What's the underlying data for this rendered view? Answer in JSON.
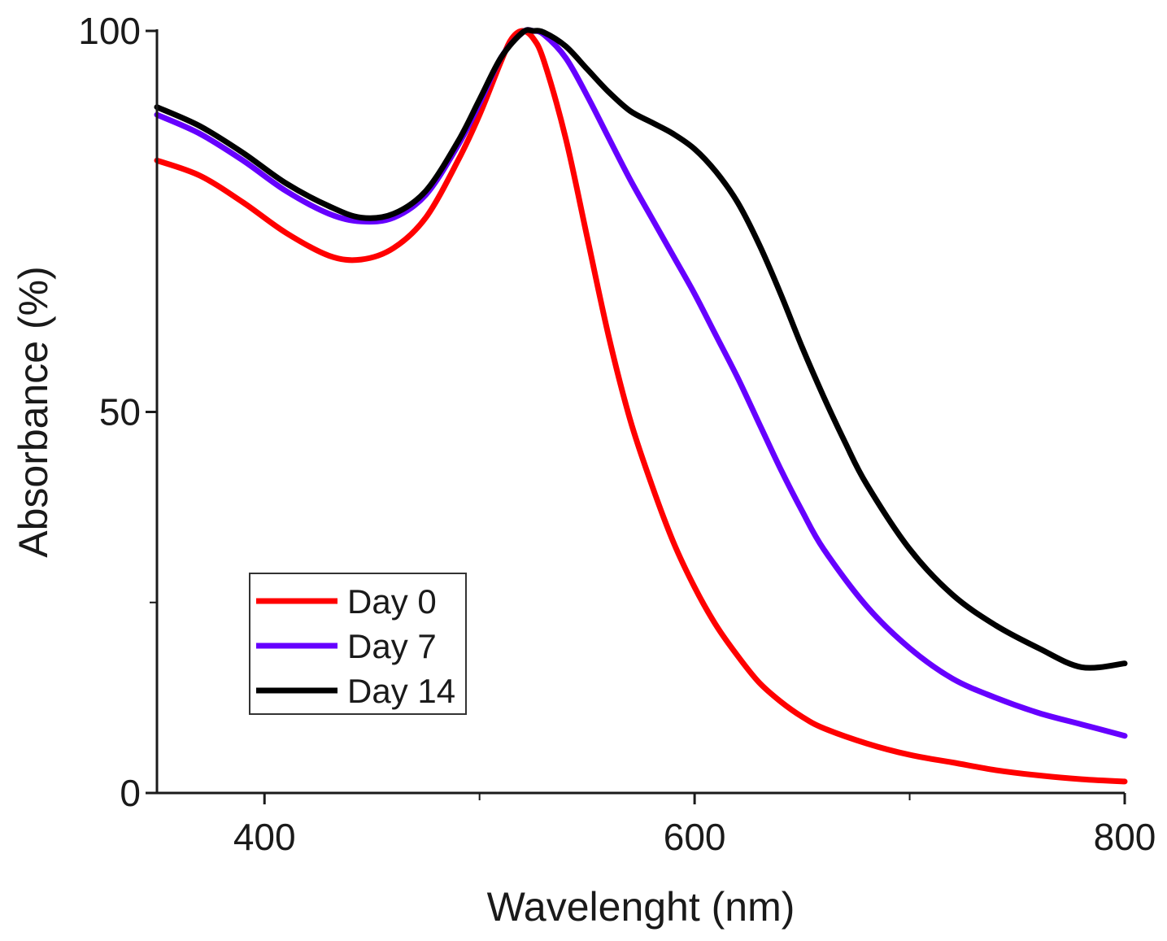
{
  "chart_data": {
    "type": "line",
    "title": "",
    "xlabel": "Wavelenght (nm)",
    "ylabel": "Absorbance (%)",
    "xlim": [
      350,
      800
    ],
    "ylim": [
      0,
      100
    ],
    "x_ticks": [
      400,
      600,
      800
    ],
    "x_minor_ticks": [
      500,
      700
    ],
    "y_ticks": [
      0,
      50,
      100
    ],
    "y_minor_ticks": [
      25
    ],
    "x_tick_labels": [
      "400",
      "600",
      "800"
    ],
    "y_tick_labels": [
      "0",
      "50",
      "100"
    ],
    "grid": false,
    "legend_position": "lower-left",
    "series": [
      {
        "name": "Day 0",
        "color": "#ff0000",
        "x": [
          350,
          370,
          390,
          410,
          430,
          445,
          460,
          475,
          490,
          500,
          510,
          515,
          520,
          525,
          530,
          540,
          550,
          560,
          570,
          580,
          590,
          600,
          610,
          620,
          630,
          640,
          650,
          660,
          680,
          700,
          720,
          740,
          760,
          780,
          800
        ],
        "y": [
          83,
          81,
          77.5,
          73.5,
          70.5,
          70,
          71.5,
          75.5,
          83,
          89,
          96,
          99,
          100,
          99,
          96,
          86,
          73,
          60,
          49,
          40.5,
          33,
          27,
          22,
          18,
          14.5,
          12,
          10,
          8.5,
          6.5,
          5,
          4,
          3,
          2.3,
          1.8,
          1.5
        ]
      },
      {
        "name": "Day 7",
        "color": "#6600ff",
        "x": [
          350,
          370,
          390,
          410,
          430,
          445,
          460,
          475,
          490,
          500,
          510,
          520,
          525,
          530,
          540,
          550,
          560,
          570,
          580,
          590,
          600,
          610,
          620,
          630,
          640,
          650,
          660,
          680,
          700,
          720,
          740,
          760,
          780,
          800
        ],
        "y": [
          89,
          86.5,
          83,
          79,
          76,
          75,
          75.5,
          78.5,
          85,
          90.5,
          96.5,
          99.8,
          100,
          99.5,
          96.5,
          91.5,
          86,
          80.5,
          75.5,
          70.5,
          65.5,
          60,
          54.5,
          48.5,
          42.5,
          37,
          32,
          24.5,
          19,
          15,
          12.5,
          10.5,
          9,
          7.5
        ]
      },
      {
        "name": "Day 14",
        "color": "#000000",
        "x": [
          350,
          370,
          390,
          410,
          430,
          445,
          460,
          475,
          490,
          500,
          510,
          520,
          525,
          530,
          540,
          550,
          560,
          570,
          580,
          590,
          600,
          610,
          620,
          630,
          640,
          650,
          660,
          670,
          680,
          700,
          720,
          740,
          760,
          780,
          800
        ],
        "y": [
          90,
          87.5,
          84,
          80,
          77,
          75.5,
          76,
          79,
          85.5,
          91,
          96.5,
          99.8,
          100,
          99.8,
          98,
          95,
          92,
          89.5,
          88,
          86.5,
          84.5,
          81.5,
          77.5,
          72,
          65.5,
          58.5,
          52,
          46,
          40.5,
          32,
          26,
          22,
          19,
          16.5,
          17
        ]
      }
    ]
  }
}
